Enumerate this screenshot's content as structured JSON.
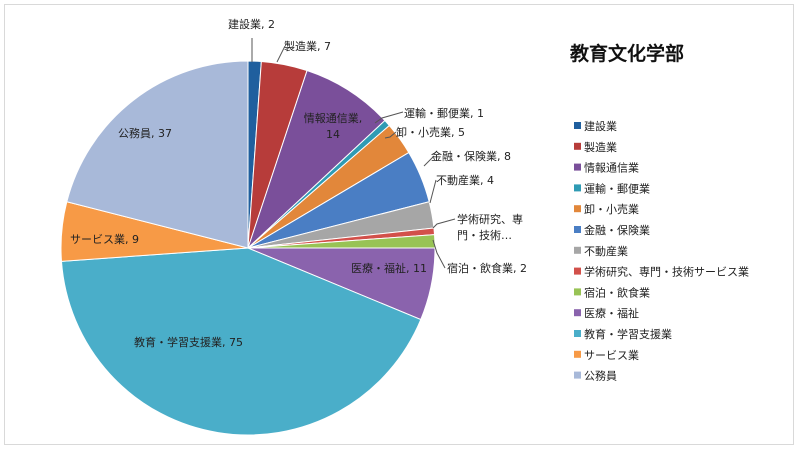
{
  "chart_data": {
    "type": "pie",
    "title": "教育文化学部",
    "categories": [
      "建設業",
      "製造業",
      "情報通信業",
      "運輸・郵便業",
      "卸・小売業",
      "金融・保険業",
      "不動産業",
      "学術研究、専門・技術サービス業",
      "宿泊・飲食業",
      "医療・福祉",
      "教育・学習支援業",
      "サービス業",
      "公務員"
    ],
    "values": [
      2,
      7,
      14,
      1,
      5,
      8,
      4,
      1,
      2,
      11,
      75,
      9,
      37
    ],
    "colors": [
      "#1f5f9e",
      "#b73c3a",
      "#7a4f9a",
      "#2f9bb4",
      "#e2873a",
      "#4a7ec4",
      "#a6a6a6",
      "#d2504a",
      "#98c355",
      "#8a63ad",
      "#4aaec9",
      "#f79a46",
      "#a8b9d9"
    ],
    "data_labels": [
      [
        "建設業, 2"
      ],
      [
        "製造業, 7"
      ],
      [
        "情報通信業,",
        "14"
      ],
      [
        "運輸・郵便業, 1"
      ],
      [
        "卸・小売業, 5"
      ],
      [
        "金融・保険業, 8"
      ],
      [
        "不動産業, 4"
      ],
      [
        "学術研究、専",
        "門・技術…"
      ],
      [
        "宿泊・飲食業, 2"
      ],
      [
        "医療・福祉, 11"
      ],
      [
        "教育・学習支援業, 75"
      ],
      [
        "サービス業, 9"
      ],
      [
        "公務員, 37"
      ]
    ],
    "legend": {
      "position": "right",
      "entries": [
        "建設業",
        "製造業",
        "情報通信業",
        "運輸・郵便業",
        "卸・小売業",
        "金融・保険業",
        "不動産業",
        "学術研究、専門・技術サービス業",
        "宿泊・飲食業",
        "医療・福祉",
        "教育・学習支援業",
        "サービス業",
        "公務員"
      ]
    }
  }
}
